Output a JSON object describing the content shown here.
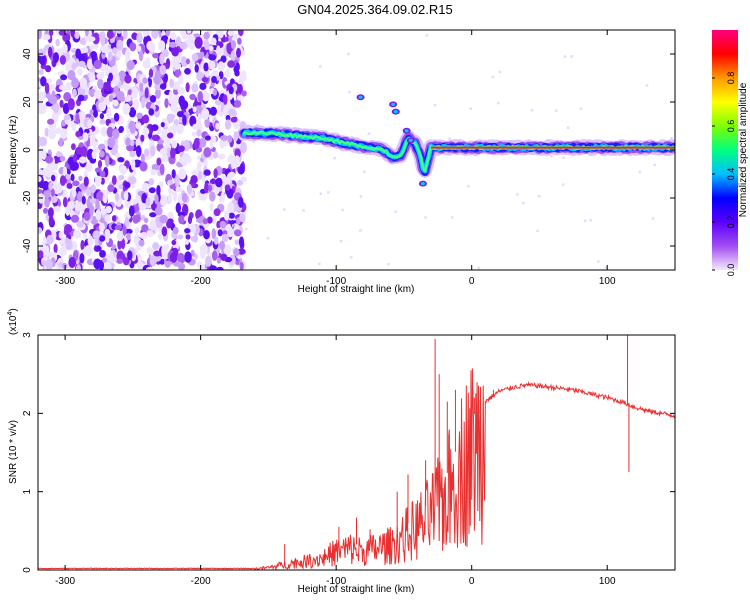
{
  "title": "GN04.2025.364.09.02.R15",
  "chart_data": [
    {
      "type": "heatmap",
      "name": "spectrogram",
      "xlabel": "Height of straight line (km)",
      "ylabel": "Frequency (Hz)",
      "xlim": [
        -320,
        150
      ],
      "ylim": [
        -50,
        50
      ],
      "xticks": [
        -300,
        -200,
        -100,
        0,
        100
      ],
      "yticks": [
        -40,
        -20,
        0,
        20,
        40
      ],
      "noise_region_x": [
        -320,
        -168
      ],
      "signal_ridge": {
        "x": [
          -168,
          -150,
          -130,
          -110,
          -95,
          -85,
          -75,
          -65,
          -58,
          -52,
          -47,
          -42,
          -38,
          -35,
          -30,
          -20,
          -10,
          0,
          20,
          50,
          80,
          100,
          120,
          150
        ],
        "freq": [
          7,
          7,
          6,
          5,
          3,
          2,
          1,
          0,
          -3,
          -2,
          5,
          3,
          -2,
          -10,
          1,
          1,
          1,
          1,
          1,
          1,
          1,
          1,
          1,
          1
        ]
      },
      "colorbar": {
        "label": "Normalized spectral amplitude",
        "range": [
          0,
          1
        ],
        "ticks": [
          "0.0",
          "0.2",
          "0.4",
          "0.6",
          "0.8"
        ],
        "tick_values": [
          0.0,
          0.2,
          0.4,
          0.6,
          0.8
        ],
        "colors": [
          "#f2e8ff",
          "#a24df0",
          "#5a00ff",
          "#0000ff",
          "#00bfff",
          "#00ff7f",
          "#7fff00",
          "#ffff00",
          "#ff9900",
          "#ff0000",
          "#ff0080"
        ]
      }
    },
    {
      "type": "line",
      "name": "snr",
      "xlabel": "Height of straight line (km)",
      "ylabel": "SNR (10 * v/v)",
      "scale_note": "(x10",
      "scale_exp": "4",
      "scale_close": ")",
      "xlim": [
        -320,
        150
      ],
      "ylim": [
        0,
        3
      ],
      "xticks": [
        -300,
        -200,
        -100,
        0,
        100
      ],
      "yticks": [
        0,
        1,
        2,
        3
      ],
      "line_color": "#e83030",
      "envelope": {
        "x": [
          -320,
          -160,
          -150,
          -140,
          -130,
          -120,
          -110,
          -100,
          -90,
          -80,
          -70,
          -60,
          -50,
          -40,
          -30,
          -20,
          -10,
          0,
          10,
          20,
          30,
          40,
          50,
          60,
          70,
          80,
          90,
          100,
          110,
          115,
          120,
          130,
          140,
          150
        ],
        "y": [
          0.02,
          0.02,
          0.04,
          0.08,
          0.12,
          0.15,
          0.2,
          0.3,
          0.35,
          0.3,
          0.35,
          0.4,
          0.55,
          0.7,
          0.9,
          1.15,
          1.6,
          1.95,
          2.15,
          2.28,
          2.33,
          2.36,
          2.35,
          2.33,
          2.31,
          2.28,
          2.24,
          2.2,
          2.15,
          2.12,
          2.08,
          2.03,
          2.0,
          1.97
        ]
      },
      "spikes": [
        {
          "x": -138,
          "y": 0.33
        },
        {
          "x": -98,
          "y": 0.55
        },
        {
          "x": -85,
          "y": 0.67
        },
        {
          "x": -75,
          "y": 0.52
        },
        {
          "x": -55,
          "y": 1.0
        },
        {
          "x": -47,
          "y": 1.22
        },
        {
          "x": -34,
          "y": 1.4
        },
        {
          "x": -27,
          "y": 2.95
        },
        {
          "x": -24,
          "y": 2.5
        },
        {
          "x": -18,
          "y": 2.15
        },
        {
          "x": -12,
          "y": 2.3
        },
        {
          "x": 2,
          "y": 2.2
        },
        {
          "x": 16,
          "y": 2.3
        },
        {
          "x": 115,
          "y": 3.05
        },
        {
          "x": 116,
          "y": 1.25
        }
      ]
    }
  ]
}
